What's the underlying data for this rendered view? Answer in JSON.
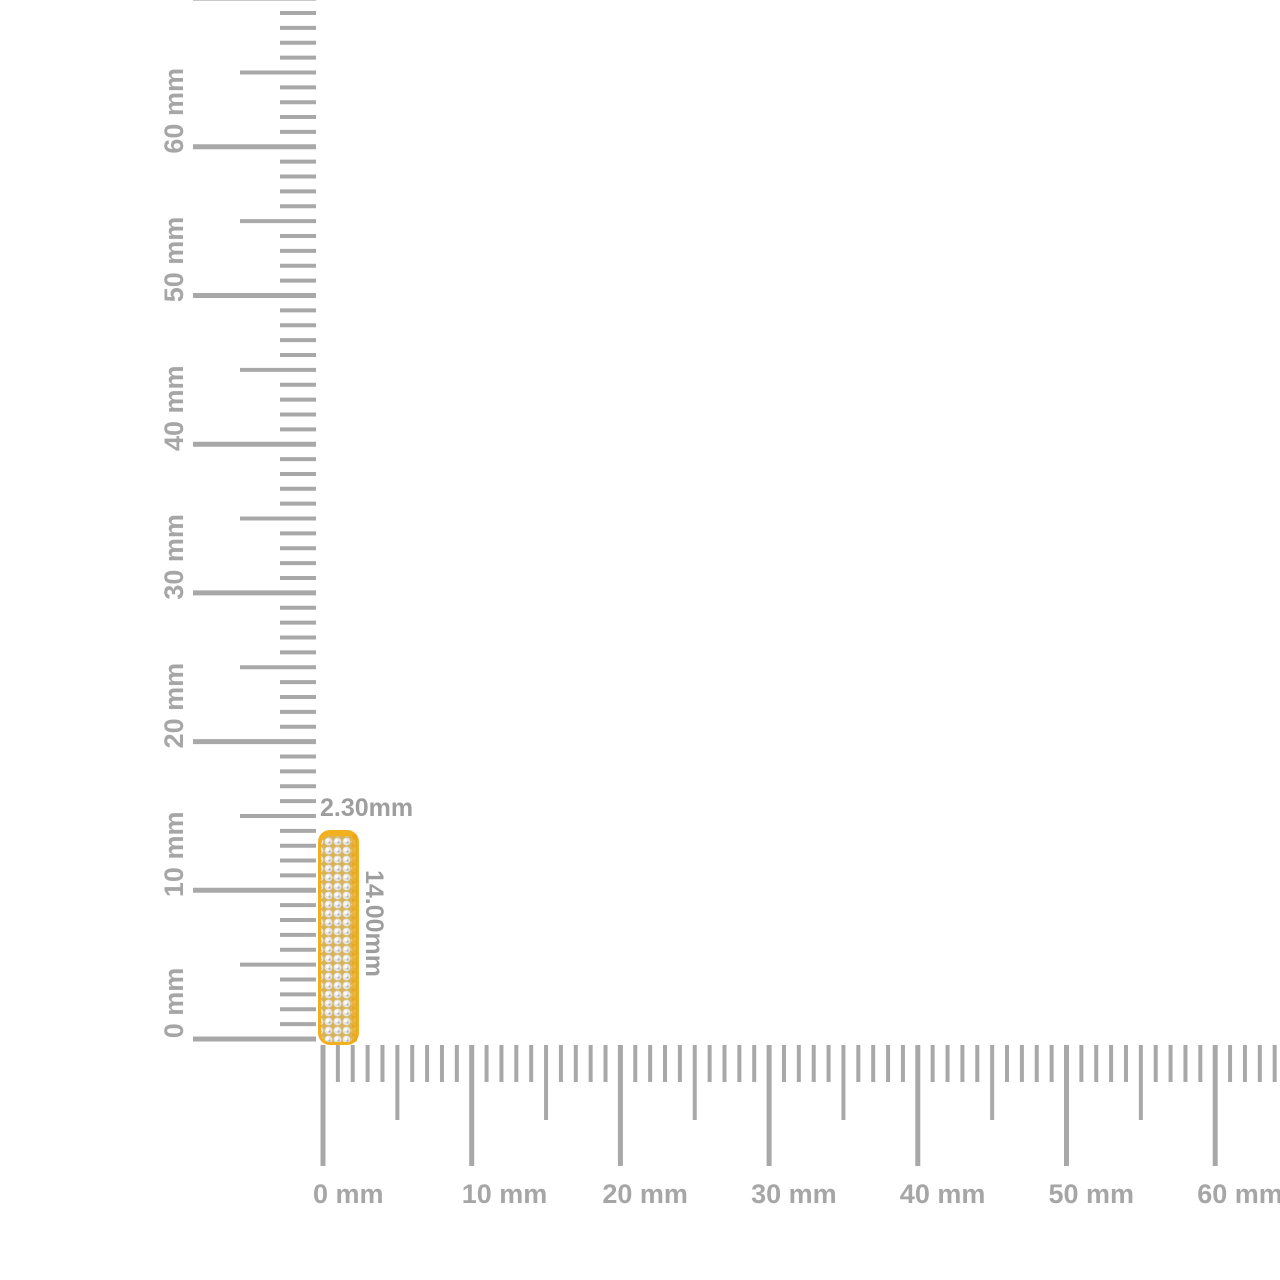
{
  "rulers": {
    "unit": "mm",
    "color": "#a8a8a8",
    "vertical": {
      "labels": [
        "0 mm",
        "10 mm",
        "20 mm",
        "30 mm",
        "40 mm",
        "50 mm",
        "60 mm"
      ],
      "max_mm": 70
    },
    "horizontal": {
      "labels": [
        "0 mm",
        "10 mm",
        "20 mm",
        "30 mm",
        "40 mm",
        "50 mm",
        "60 mm"
      ],
      "max_mm": 64
    }
  },
  "product": {
    "type": "pavé diamond huggie hoop earring",
    "metal_color": "#f2b01e",
    "width_label": "2.30mm",
    "height_label": "14.00mm",
    "width_mm": 2.3,
    "height_mm": 14.0
  }
}
